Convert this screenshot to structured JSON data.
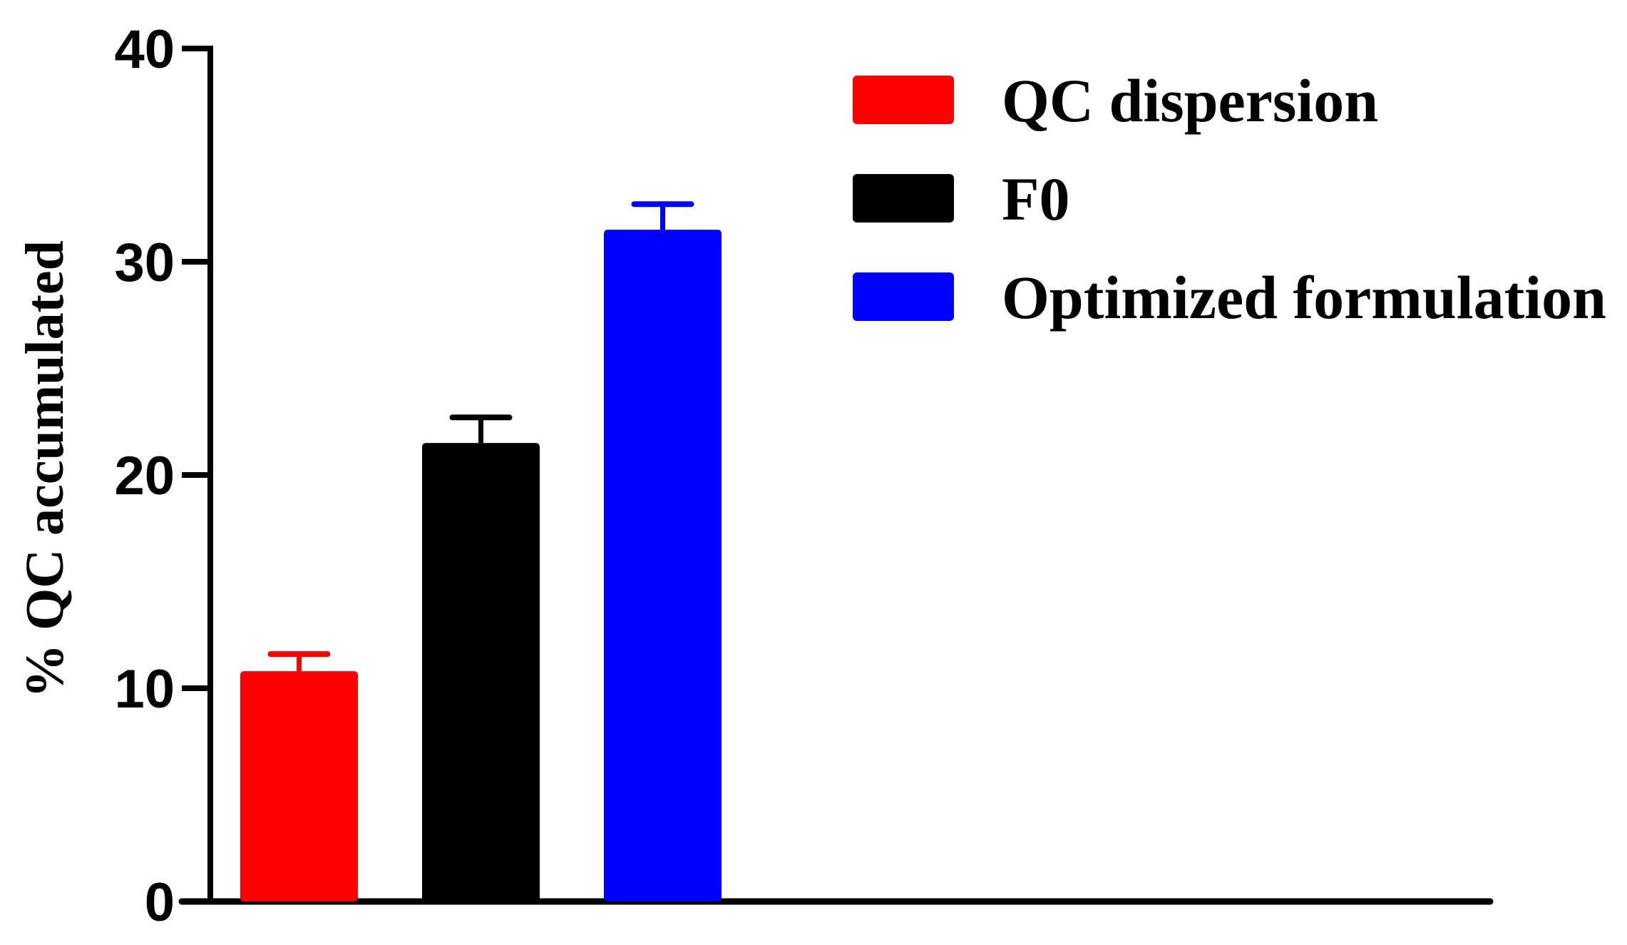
{
  "chart_data": {
    "type": "bar",
    "title": "",
    "xlabel": "",
    "ylabel": "% QC accumulated",
    "ylim": [
      0,
      40
    ],
    "yticks": [
      0,
      10,
      20,
      30,
      40
    ],
    "grid": false,
    "legend_position": "top-right",
    "series": [
      {
        "name": "QC dispersion",
        "value": 10.8,
        "error": 0.8,
        "color": "#ff0000"
      },
      {
        "name": "F0",
        "value": 21.5,
        "error": 1.2,
        "color": "#000000"
      },
      {
        "name": "Optimized formulation",
        "value": 31.5,
        "error": 1.2,
        "color": "#0000ff"
      }
    ]
  }
}
